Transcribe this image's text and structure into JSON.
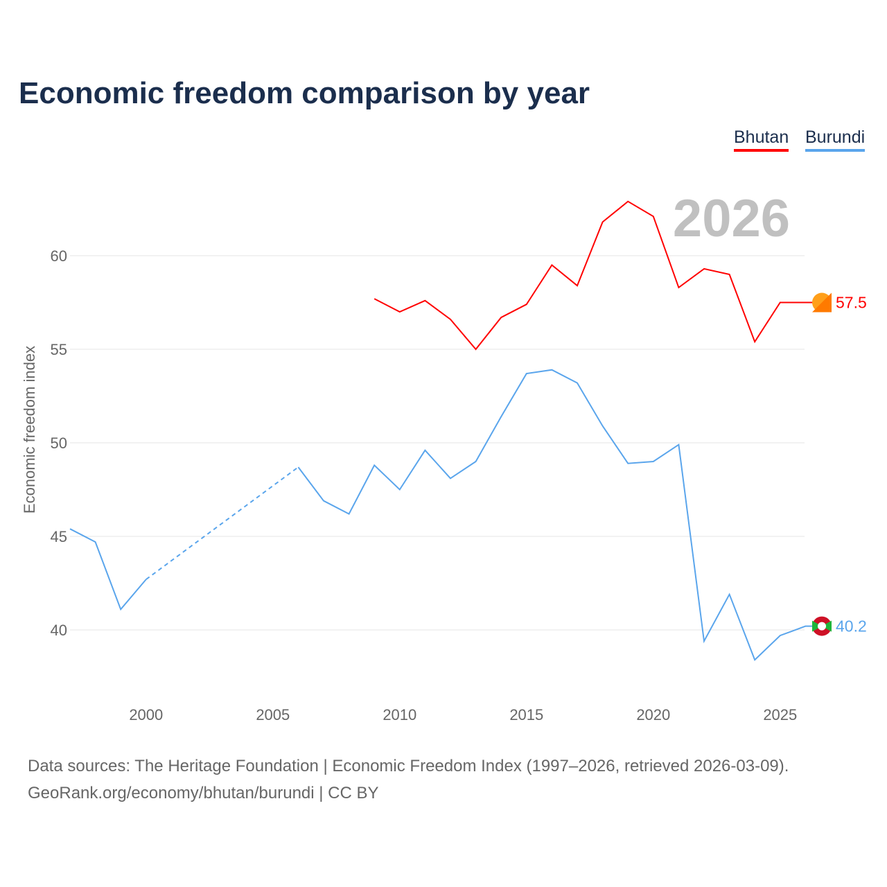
{
  "title": "Economic freedom comparison by year",
  "year_label": "2026",
  "footer": {
    "line1": "Data sources: The Heritage Foundation | Economic Freedom Index (1997–2026, retrieved 2026-03-09).",
    "line2": "GeoRank.org/economy/bhutan/burundi | CC BY"
  },
  "chart_data": {
    "type": "line",
    "title": "Economic freedom comparison by year",
    "xlabel": "",
    "ylabel": "Economic freedom index",
    "xlim": [
      1997,
      2026
    ],
    "ylim": [
      37,
      64
    ],
    "x_ticks": [
      2000,
      2005,
      2010,
      2015,
      2020,
      2025
    ],
    "y_ticks": [
      40,
      45,
      50,
      55,
      60
    ],
    "grid": true,
    "legend_placement": "top-right",
    "x": [
      1997,
      1998,
      1999,
      2000,
      2001,
      2002,
      2003,
      2004,
      2005,
      2006,
      2007,
      2008,
      2009,
      2010,
      2011,
      2012,
      2013,
      2014,
      2015,
      2016,
      2017,
      2018,
      2019,
      2020,
      2021,
      2022,
      2023,
      2024,
      2025,
      2026
    ],
    "series": [
      {
        "name": "Bhutan",
        "color": "#ff0000",
        "end_label": "57.5",
        "values": [
          null,
          null,
          null,
          null,
          null,
          null,
          null,
          null,
          null,
          null,
          null,
          null,
          57.7,
          57.0,
          57.6,
          56.6,
          55.0,
          56.7,
          57.4,
          59.5,
          58.4,
          61.8,
          62.9,
          62.1,
          58.3,
          59.3,
          59.0,
          55.4,
          57.5,
          57.5
        ]
      },
      {
        "name": "Burundi",
        "color": "#5aa5ec",
        "end_label": "40.2",
        "values": [
          45.4,
          44.7,
          41.1,
          42.7,
          null,
          null,
          null,
          null,
          null,
          48.7,
          46.9,
          46.2,
          48.8,
          47.5,
          49.6,
          48.1,
          49.0,
          51.4,
          53.7,
          53.9,
          53.2,
          50.9,
          48.9,
          49.0,
          49.9,
          39.4,
          41.9,
          38.4,
          39.7,
          40.2
        ]
      }
    ]
  }
}
